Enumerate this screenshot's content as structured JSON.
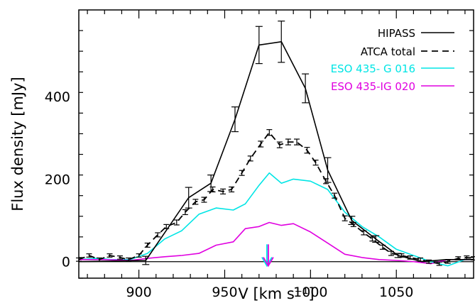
{
  "chart_data": {
    "type": "line",
    "title": "",
    "xlabel": "V [km s⁻¹]",
    "ylabel": "Flux density [mJy]",
    "xlim": [
      865,
      1095
    ],
    "ylim": [
      -40,
      610
    ],
    "xticks": [
      900,
      950,
      1000,
      1050
    ],
    "yticks": [
      0,
      200,
      400
    ],
    "x_tick_labels": [
      "900",
      "950",
      "1000",
      "1050"
    ],
    "y_tick_labels": [
      "0",
      "200",
      "400"
    ],
    "grid": false,
    "legend_position": "top-right",
    "series": [
      {
        "name": "HIPASS",
        "color": "#000000",
        "style": "solid",
        "x": [
          865,
          904,
          929,
          942,
          956,
          970,
          983,
          997,
          1010,
          1024,
          1038,
          1051,
          1065,
          1079,
          1095
        ],
        "y": [
          0,
          3,
          155,
          190,
          345,
          525,
          533,
          420,
          222,
          100,
          55,
          15,
          0,
          5,
          5
        ],
        "err": [
          0,
          10,
          25,
          20,
          30,
          45,
          50,
          35,
          30,
          10,
          8,
          5,
          0,
          0,
          0
        ]
      },
      {
        "name": "ATCA total",
        "color": "#000000",
        "style": "dashed",
        "x": [
          865,
          871,
          877,
          883,
          889,
          894,
          900,
          905,
          911,
          916,
          922,
          927,
          933,
          938,
          943,
          949,
          954,
          960,
          965,
          971,
          976,
          982,
          987,
          992,
          998,
          1003,
          1009,
          1014,
          1020,
          1025,
          1031,
          1036,
          1042,
          1047,
          1053,
          1058,
          1064,
          1069,
          1075,
          1080,
          1086,
          1091,
          1095
        ],
        "y": [
          5,
          15,
          5,
          15,
          10,
          5,
          15,
          40,
          65,
          85,
          95,
          120,
          145,
          150,
          175,
          170,
          175,
          215,
          250,
          285,
          313,
          283,
          290,
          290,
          270,
          240,
          195,
          160,
          105,
          90,
          70,
          55,
          35,
          20,
          15,
          10,
          5,
          0,
          -5,
          0,
          8,
          10,
          8
        ],
        "err": [
          4,
          4,
          4,
          4,
          4,
          4,
          4,
          5,
          5,
          5,
          6,
          6,
          6,
          6,
          6,
          6,
          6,
          6,
          6,
          7,
          7,
          7,
          7,
          7,
          7,
          6,
          6,
          6,
          6,
          5,
          5,
          5,
          5,
          5,
          4,
          4,
          4,
          4,
          4,
          4,
          4,
          4,
          4
        ]
      },
      {
        "name": "ESO 435- G 016",
        "color": "#00e5e5",
        "style": "solid",
        "x": [
          865,
          875,
          885,
          895,
          905,
          915,
          925,
          935,
          945,
          955,
          962,
          970,
          976,
          983,
          990,
          1000,
          1010,
          1020,
          1030,
          1040,
          1050,
          1060,
          1070,
          1080,
          1090,
          1095
        ],
        "y": [
          5,
          8,
          5,
          5,
          20,
          55,
          75,
          115,
          130,
          125,
          140,
          185,
          215,
          190,
          200,
          195,
          175,
          120,
          85,
          60,
          30,
          15,
          0,
          -10,
          5,
          5
        ]
      },
      {
        "name": "ESO 435-IG 020",
        "color": "#e000e0",
        "style": "solid",
        "x": [
          865,
          880,
          895,
          905,
          915,
          925,
          935,
          945,
          955,
          962,
          970,
          976,
          983,
          990,
          1000,
          1010,
          1020,
          1030,
          1040,
          1050,
          1060,
          1070,
          1080,
          1095
        ],
        "y": [
          5,
          5,
          3,
          8,
          12,
          15,
          20,
          40,
          48,
          80,
          85,
          95,
          88,
          92,
          72,
          45,
          18,
          10,
          5,
          3,
          0,
          -5,
          5,
          5
        ]
      }
    ],
    "annotations": [
      {
        "type": "arrow",
        "x": 975,
        "color": "#00e5e5",
        "y_from": 42,
        "y_to": -10
      },
      {
        "type": "arrow",
        "x": 975,
        "color": "#e000e0",
        "y_from": 42,
        "y_to": -10
      }
    ]
  }
}
